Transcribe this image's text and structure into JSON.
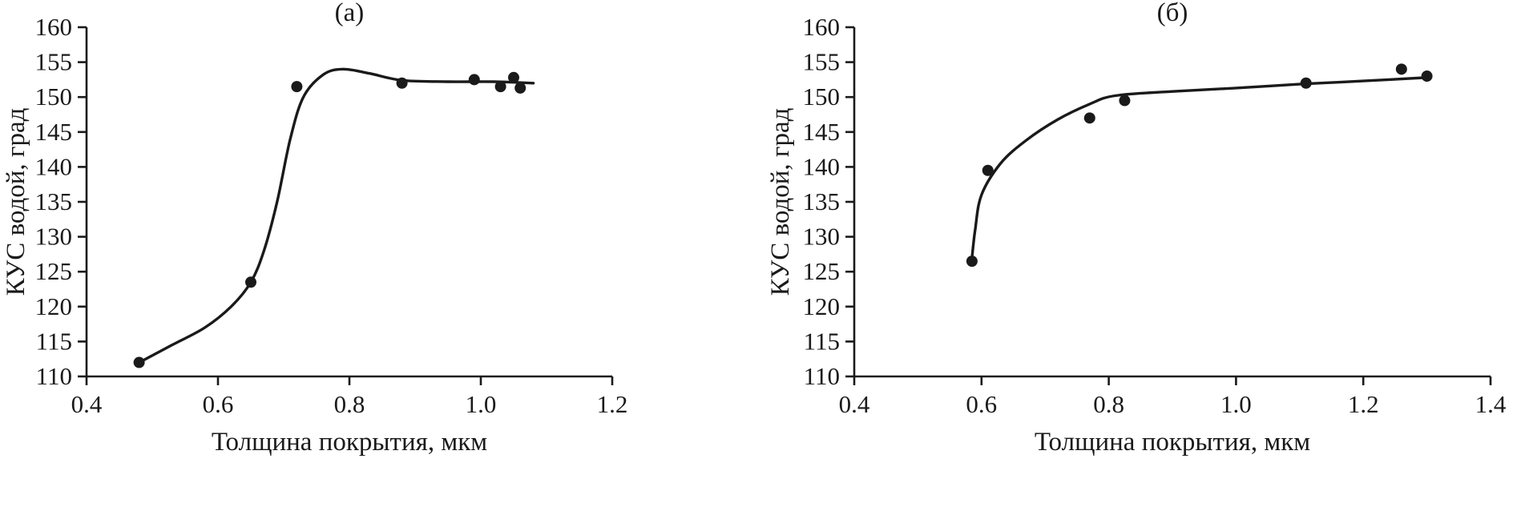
{
  "figure": {
    "background": "#ffffff",
    "ink_color": "#1a1a1a"
  },
  "chart_data": [
    {
      "type": "scatter",
      "panel_label": "(а)",
      "title": "(а)",
      "xlabel": "Толщина покрытия, мкм",
      "ylabel": "КУС водой, град",
      "xlim": [
        0.4,
        1.2
      ],
      "ylim": [
        110,
        160
      ],
      "xticks": [
        0.4,
        0.6,
        0.8,
        1.0,
        1.2
      ],
      "yticks": [
        110,
        115,
        120,
        125,
        130,
        135,
        140,
        145,
        150,
        155,
        160
      ],
      "grid": false,
      "legend": "none",
      "points": [
        [
          0.48,
          112
        ],
        [
          0.65,
          123.5
        ],
        [
          0.72,
          151.5
        ],
        [
          0.88,
          152
        ],
        [
          0.99,
          152.5
        ],
        [
          1.03,
          151.5
        ],
        [
          1.05,
          152.8
        ],
        [
          1.06,
          151.3
        ]
      ],
      "curve": [
        [
          0.48,
          112
        ],
        [
          0.53,
          114.5
        ],
        [
          0.58,
          117
        ],
        [
          0.62,
          120
        ],
        [
          0.65,
          123.5
        ],
        [
          0.67,
          128
        ],
        [
          0.69,
          135
        ],
        [
          0.71,
          144
        ],
        [
          0.73,
          150
        ],
        [
          0.76,
          153.2
        ],
        [
          0.79,
          154
        ],
        [
          0.83,
          153.4
        ],
        [
          0.88,
          152.4
        ],
        [
          0.95,
          152.2
        ],
        [
          1.02,
          152.2
        ],
        [
          1.08,
          152
        ]
      ]
    },
    {
      "type": "scatter",
      "panel_label": "(б)",
      "title": "(б)",
      "xlabel": "Толщина покрытия, мкм",
      "ylabel": "КУС водой, град",
      "xlim": [
        0.4,
        1.4
      ],
      "ylim": [
        110,
        160
      ],
      "xticks": [
        0.4,
        0.6,
        0.8,
        1.0,
        1.2,
        1.4
      ],
      "yticks": [
        110,
        115,
        120,
        125,
        130,
        135,
        140,
        145,
        150,
        155,
        160
      ],
      "grid": false,
      "legend": "none",
      "points": [
        [
          0.585,
          126.5
        ],
        [
          0.61,
          139.5
        ],
        [
          0.77,
          147
        ],
        [
          0.825,
          149.5
        ],
        [
          1.11,
          152
        ],
        [
          1.26,
          154
        ],
        [
          1.3,
          153
        ]
      ],
      "curve": [
        [
          0.585,
          127
        ],
        [
          0.59,
          131
        ],
        [
          0.6,
          136
        ],
        [
          0.63,
          140.5
        ],
        [
          0.67,
          143.8
        ],
        [
          0.72,
          146.8
        ],
        [
          0.77,
          149
        ],
        [
          0.81,
          150.2
        ],
        [
          0.9,
          150.8
        ],
        [
          1.0,
          151.3
        ],
        [
          1.11,
          151.9
        ],
        [
          1.2,
          152.3
        ],
        [
          1.3,
          152.8
        ]
      ]
    }
  ]
}
